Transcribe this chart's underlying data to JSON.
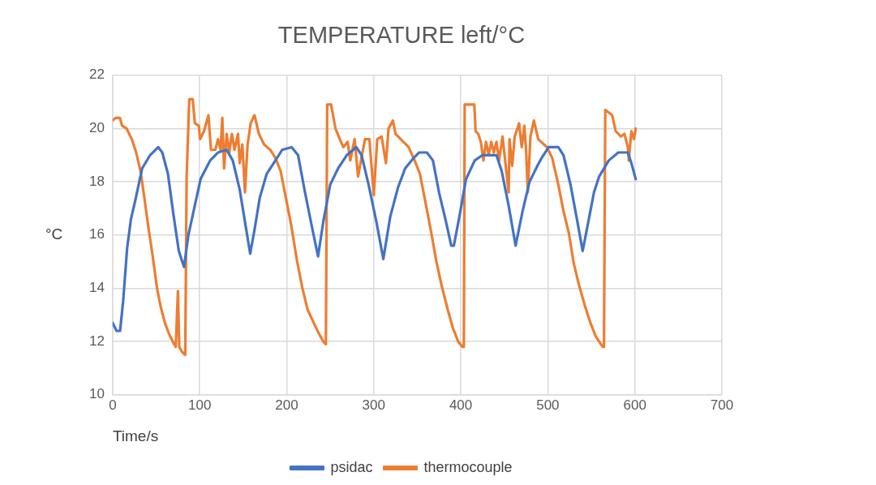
{
  "chart_data": {
    "type": "line",
    "title": "TEMPERATURE left/°C",
    "xlabel": "Time/s",
    "ylabel": "°C",
    "xlim": [
      0,
      700
    ],
    "xticks": [
      0,
      100,
      200,
      300,
      400,
      500,
      600,
      700
    ],
    "ylim": [
      10,
      22
    ],
    "yticks": [
      10,
      12,
      14,
      16,
      18,
      20,
      22
    ],
    "grid": true,
    "legend": "bottom",
    "marker": "none",
    "line_style": "solid",
    "series": [
      {
        "name": "psidac",
        "color": "#4472c4",
        "x": [
          0,
          4.5,
          8.5,
          12,
          16.6,
          21,
          26,
          33.8,
          43,
          52.4,
          57,
          63.5,
          69.7,
          76,
          82,
          87,
          93,
          101,
          112,
          121,
          131,
          138,
          146,
          152,
          158,
          163,
          169,
          177,
          187,
          194.7,
          205.6,
          213,
          221,
          229,
          236,
          242,
          250,
          259,
          269,
          280,
          286,
          294,
          303,
          311,
          319,
          328,
          336,
          346,
          352,
          361,
          368,
          375,
          383,
          389,
          392,
          399,
          406,
          416,
          425,
          441,
          447,
          455,
          463,
          471,
          479,
          488,
          493,
          501,
          512,
          518,
          526,
          534,
          540,
          546,
          553,
          559,
          570,
          581,
          592,
          596,
          601
        ],
        "values": [
          12.7,
          12.4,
          12.4,
          13.5,
          15.5,
          16.6,
          17.3,
          18.5,
          19.0,
          19.3,
          19.1,
          18.3,
          16.8,
          15.4,
          14.8,
          16.0,
          16.9,
          18.1,
          18.8,
          19.1,
          19.2,
          18.8,
          17.7,
          16.5,
          15.3,
          16.2,
          17.4,
          18.3,
          18.8,
          19.2,
          19.3,
          19.0,
          17.6,
          16.3,
          15.2,
          16.5,
          17.9,
          18.5,
          19.0,
          19.3,
          19.0,
          17.9,
          16.5,
          15.1,
          16.7,
          17.8,
          18.5,
          18.9,
          19.1,
          19.1,
          18.8,
          17.6,
          16.5,
          15.6,
          15.6,
          16.8,
          18.1,
          18.8,
          19.0,
          19.0,
          18.4,
          17.1,
          15.6,
          16.9,
          18.0,
          18.6,
          18.9,
          19.3,
          19.3,
          19.0,
          17.9,
          16.5,
          15.4,
          16.4,
          17.6,
          18.2,
          18.8,
          19.1,
          19.1,
          18.7,
          18.1
        ]
      },
      {
        "name": "thermocouple",
        "color": "#ed7d31",
        "x": [
          0,
          3.5,
          8.2,
          11,
          16,
          22,
          27,
          32,
          36.4,
          41,
          46,
          51,
          55.2,
          60,
          64.6,
          69,
          72.5,
          75,
          76.5,
          80,
          83.4,
          85,
          88,
          92,
          94.4,
          99,
          100.5,
          105,
          110,
          113,
          118,
          121,
          124,
          126,
          128,
          131,
          134,
          137,
          140,
          144,
          146,
          149,
          152,
          155,
          158.6,
          163,
          168,
          174,
          181,
          187,
          193,
          199,
          205,
          212,
          218,
          224,
          231,
          237,
          242,
          245,
          246.5,
          251,
          256,
          261,
          265,
          270,
          273,
          278,
          282,
          287,
          290,
          295,
          300,
          304,
          309,
          314,
          317,
          322,
          325,
          334,
          340,
          347,
          353,
          359,
          366,
          372,
          378,
          385,
          391,
          397,
          402,
          403.5,
          404.5,
          415.5,
          417,
          420,
          423,
          426,
          429,
          432,
          435,
          438,
          441,
          444,
          448,
          451,
          455,
          456,
          459,
          462,
          467,
          470,
          473,
          475,
          477,
          480,
          484,
          489,
          499,
          505,
          512,
          518,
          524,
          530,
          536,
          543,
          549,
          555,
          563,
          564.5,
          566,
          574,
          578,
          584,
          588,
          592,
          593,
          596,
          599,
          601
        ],
        "values": [
          20.3,
          20.4,
          20.4,
          20.1,
          20.0,
          19.6,
          19.1,
          18.4,
          17.4,
          16.3,
          15.2,
          14.0,
          13.3,
          12.7,
          12.3,
          12.0,
          11.8,
          13.9,
          11.8,
          11.6,
          11.5,
          18.2,
          21.1,
          21.1,
          20.2,
          20.1,
          19.6,
          19.9,
          20.5,
          19.2,
          19.2,
          19.6,
          19.2,
          20.4,
          18.5,
          19.8,
          19.1,
          19.8,
          19.2,
          19.8,
          18.7,
          19.4,
          17.6,
          19.4,
          20.2,
          20.5,
          19.8,
          19.4,
          19.2,
          18.9,
          18.4,
          17.4,
          16.4,
          15.0,
          14.0,
          13.2,
          12.7,
          12.3,
          12.0,
          11.9,
          20.9,
          20.9,
          20.0,
          19.6,
          19.3,
          19.5,
          18.8,
          19.6,
          18.2,
          19.1,
          19.6,
          19.6,
          17.5,
          19.6,
          19.7,
          18.7,
          20.0,
          20.3,
          19.8,
          19.5,
          19.3,
          18.8,
          18.3,
          17.3,
          16.1,
          15.0,
          14.1,
          13.2,
          12.5,
          12.0,
          11.8,
          11.8,
          20.9,
          20.9,
          19.9,
          19.8,
          19.5,
          18.8,
          19.5,
          19.0,
          19.5,
          19.1,
          19.5,
          18.8,
          19.7,
          18.8,
          17.6,
          19.6,
          18.6,
          19.7,
          20.2,
          19.3,
          20.1,
          19.2,
          17.6,
          19.7,
          20.3,
          19.6,
          19.3,
          18.9,
          17.9,
          16.9,
          16.1,
          14.9,
          14.1,
          13.3,
          12.7,
          12.2,
          11.8,
          11.8,
          20.7,
          20.5,
          19.9,
          19.7,
          19.8,
          19.3,
          18.8,
          19.9,
          19.6,
          20.0
        ]
      }
    ]
  }
}
